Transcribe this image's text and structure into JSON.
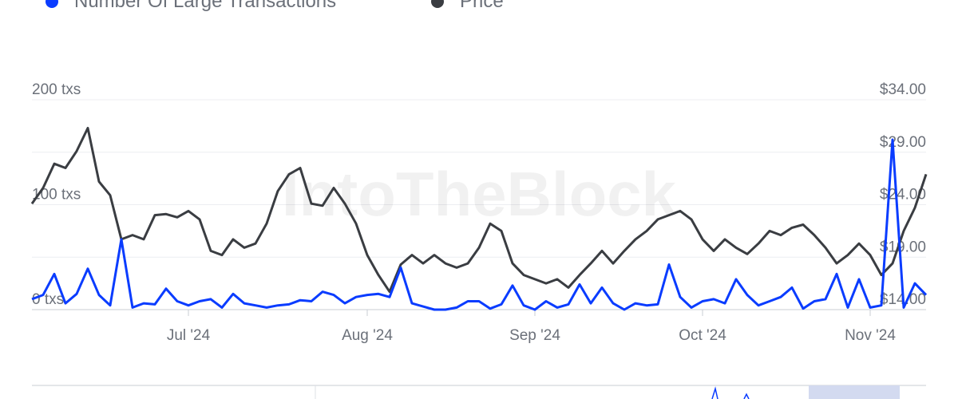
{
  "chart_data": {
    "type": "line",
    "watermark": "IntoTheBlock",
    "categories": [
      null,
      null,
      null,
      null,
      null,
      null,
      null,
      null,
      null,
      null,
      null,
      null,
      null,
      null,
      "Jul '24",
      null,
      null,
      null,
      null,
      null,
      null,
      null,
      null,
      null,
      null,
      null,
      null,
      null,
      null,
      null,
      "Aug '24",
      null,
      null,
      null,
      null,
      null,
      null,
      null,
      null,
      null,
      null,
      null,
      null,
      null,
      null,
      "Sep '24",
      null,
      null,
      null,
      null,
      null,
      null,
      null,
      null,
      null,
      null,
      null,
      null,
      null,
      null,
      "Oct '24",
      null,
      null,
      null,
      null,
      null,
      null,
      null,
      null,
      null,
      null,
      null,
      null,
      null,
      null,
      "Nov '24",
      null,
      null,
      null,
      null,
      null
    ],
    "series": [
      {
        "name": "Number Of Large Transactions",
        "color": "#0a3cff",
        "values": [
          10,
          14,
          34,
          6,
          15,
          39,
          14,
          4,
          67,
          2,
          6,
          5,
          20,
          8,
          4,
          8,
          10,
          2,
          15,
          6,
          4,
          2,
          4,
          5,
          9,
          8,
          17,
          14,
          6,
          12,
          14,
          15,
          12,
          40,
          6,
          3,
          0,
          0,
          2,
          8,
          8,
          1,
          5,
          23,
          4,
          0,
          8,
          2,
          5,
          24,
          6,
          21,
          6,
          0,
          6,
          4,
          5,
          43,
          12,
          2,
          8,
          10,
          6,
          29,
          14,
          4,
          8,
          12,
          21,
          1,
          8,
          10,
          34,
          2,
          29,
          2,
          4,
          162,
          2,
          25,
          14
        ]
      },
      {
        "name": "Price",
        "color": "#3a3d42",
        "axis": "y2",
        "values": [
          24.1,
          25.6,
          27.9,
          27.5,
          29.1,
          31.3,
          26.2,
          24.9,
          20.7,
          21.1,
          20.7,
          23.0,
          23.1,
          22.8,
          23.4,
          22.6,
          19.6,
          19.2,
          20.7,
          19.9,
          20.3,
          22.2,
          25.3,
          26.9,
          27.5,
          24.1,
          23.9,
          25.6,
          24.1,
          22.2,
          19.2,
          17.3,
          15.7,
          18.3,
          19.2,
          18.4,
          19.2,
          18.4,
          18.0,
          18.4,
          19.9,
          22.2,
          21.5,
          18.4,
          17.3,
          16.9,
          16.5,
          16.9,
          16.1,
          17.3,
          18.4,
          19.6,
          18.4,
          19.6,
          20.7,
          21.5,
          22.6,
          23.0,
          23.4,
          22.6,
          20.7,
          19.6,
          20.7,
          19.9,
          19.3,
          20.3,
          21.5,
          21.1,
          21.8,
          22.1,
          21.1,
          19.9,
          18.4,
          19.2,
          20.3,
          19.2,
          17.3,
          18.4,
          21.5,
          23.7,
          26.9
        ]
      }
    ],
    "ylim": [
      0,
      200
    ],
    "yticks": [
      {
        "value": 0,
        "label": "0 txs"
      },
      {
        "value": 100,
        "label": "100 txs"
      },
      {
        "value": 200,
        "label": "200 txs"
      }
    ],
    "y2lim": [
      14,
      34
    ],
    "y2ticks": [
      {
        "value": 14,
        "label": "$14.00"
      },
      {
        "value": 19,
        "label": "$19.00"
      },
      {
        "value": 24,
        "label": "$24.00"
      },
      {
        "value": 29,
        "label": "$29.00"
      },
      {
        "value": 34,
        "label": "$34.00"
      }
    ],
    "grid": true
  }
}
